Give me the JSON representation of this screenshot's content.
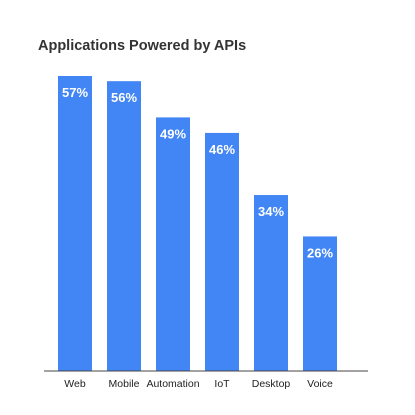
{
  "chart_data": {
    "type": "bar",
    "title": "Applications Powered by APIs",
    "xlabel": "",
    "ylabel": "",
    "categories": [
      "Web",
      "Mobile",
      "Automation",
      "IoT",
      "Desktop",
      "Voice"
    ],
    "values": [
      57,
      56,
      49,
      46,
      34,
      26
    ],
    "value_labels": [
      "57%",
      "56%",
      "49%",
      "46%",
      "34%",
      "26%"
    ],
    "ylim": [
      0,
      60
    ],
    "grid": false,
    "legend": "none",
    "bar_color": "#4285f4",
    "axis_color": "#444444"
  }
}
